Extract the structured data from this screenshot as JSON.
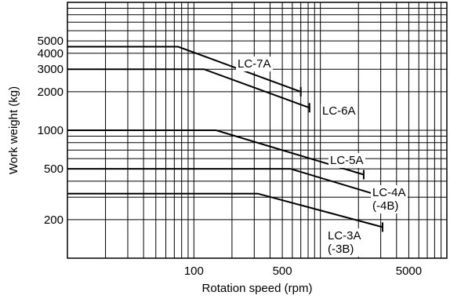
{
  "chart_data": {
    "type": "line",
    "title": "",
    "xlabel": "Rotation speed (rpm)",
    "ylabel": "Work weight (kg)",
    "x_scale": "log",
    "y_scale": "log",
    "xlim": [
      10,
      10000
    ],
    "ylim": [
      100,
      10000
    ],
    "grid": true,
    "x_tick_labels": [
      {
        "value": 100,
        "label": "100"
      },
      {
        "value": 500,
        "label": "500"
      },
      {
        "value": 5000,
        "label": "5000"
      }
    ],
    "y_tick_labels": [
      {
        "value": 200,
        "label": "200"
      },
      {
        "value": 500,
        "label": "500"
      },
      {
        "value": 1000,
        "label": "1000"
      },
      {
        "value": 2000,
        "label": "2000"
      },
      {
        "value": 3000,
        "label": "3000"
      },
      {
        "value": 4000,
        "label": "4000"
      },
      {
        "value": 5000,
        "label": "5000"
      }
    ],
    "series": [
      {
        "name": "LC-7A",
        "points": [
          [
            10,
            4500
          ],
          [
            75,
            4500
          ],
          [
            700,
            2000
          ]
        ]
      },
      {
        "name": "LC-6A",
        "points": [
          [
            10,
            3000
          ],
          [
            120,
            3000
          ],
          [
            820,
            1500
          ]
        ]
      },
      {
        "name": "LC-5A",
        "points": [
          [
            10,
            1000
          ],
          [
            150,
            1000
          ],
          [
            2200,
            450
          ]
        ]
      },
      {
        "name": "LC-4A\n(-4B)",
        "points": [
          [
            10,
            500
          ],
          [
            580,
            500
          ],
          [
            2600,
            320
          ]
        ]
      },
      {
        "name": "LC-3A\n(-3B)",
        "points": [
          [
            10,
            320
          ],
          [
            320,
            320
          ],
          [
            3100,
            175
          ]
        ]
      }
    ]
  }
}
